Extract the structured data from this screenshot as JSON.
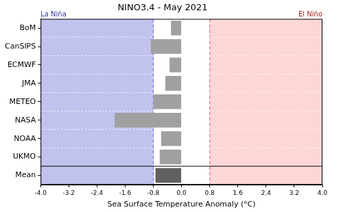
{
  "chart_data": {
    "type": "bar",
    "orientation": "horizontal",
    "title": "NINO3.4 - May 2021",
    "xlabel": "Sea Surface Temperature Anomaly (°C)",
    "categories": [
      "BoM",
      "CanSIPS",
      "ECMWF",
      "JMA",
      "METEO",
      "NASA",
      "NOAA",
      "UKMO",
      "Mean"
    ],
    "values": [
      -0.3,
      -0.87,
      -0.34,
      -0.46,
      -0.8,
      -1.9,
      -0.58,
      -0.62,
      -0.74
    ],
    "colors": [
      "#a0a0a0",
      "#a0a0a0",
      "#a0a0a0",
      "#a0a0a0",
      "#a0a0a0",
      "#a0a0a0",
      "#a0a0a0",
      "#a0a0a0",
      "#606060"
    ],
    "xlim": [
      -4.0,
      4.0
    ],
    "xticks": [
      {
        "value": -4.0,
        "label": "-4.0"
      },
      {
        "value": -3.2,
        "label": "-3.2"
      },
      {
        "value": -2.4,
        "label": "-2.4"
      },
      {
        "value": -1.6,
        "label": "-1.6"
      },
      {
        "value": -0.8,
        "label": "-0.8"
      },
      {
        "value": 0.0,
        "label": "0.0"
      },
      {
        "value": 0.8,
        "label": "0.8"
      },
      {
        "value": 1.6,
        "label": "1.6"
      },
      {
        "value": 2.4,
        "label": "2.4"
      },
      {
        "value": 3.2,
        "label": "3.2"
      },
      {
        "value": 4.0,
        "label": "4.0"
      }
    ],
    "regions": [
      {
        "label": "La Niña",
        "range": [
          -4.0,
          -0.8
        ],
        "color": "#c2c2ee"
      },
      {
        "label": "El Niño",
        "range": [
          0.8,
          4.0
        ],
        "color": "#fdd6d6"
      }
    ],
    "grid": true
  }
}
